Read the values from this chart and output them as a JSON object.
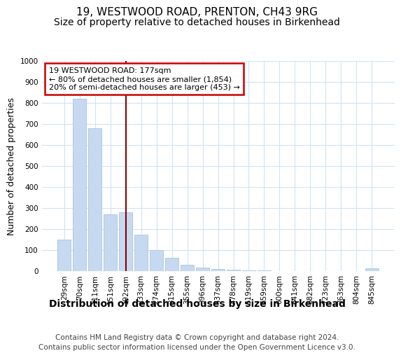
{
  "title": "19, WESTWOOD ROAD, PRENTON, CH43 9RG",
  "subtitle": "Size of property relative to detached houses in Birkenhead",
  "xlabel": "Distribution of detached houses by size in Birkenhead",
  "ylabel": "Number of detached properties",
  "categories": [
    "29sqm",
    "70sqm",
    "111sqm",
    "151sqm",
    "192sqm",
    "233sqm",
    "274sqm",
    "315sqm",
    "355sqm",
    "396sqm",
    "437sqm",
    "478sqm",
    "519sqm",
    "559sqm",
    "600sqm",
    "641sqm",
    "682sqm",
    "723sqm",
    "763sqm",
    "804sqm",
    "845sqm"
  ],
  "values": [
    150,
    820,
    680,
    270,
    280,
    175,
    100,
    65,
    30,
    18,
    10,
    7,
    5,
    4,
    0,
    0,
    0,
    0,
    0,
    0,
    15
  ],
  "bar_color": "#c6d9f0",
  "bar_edge_color": "#a8c4e0",
  "vline_x_index": 4,
  "vline_color": "#8b0000",
  "annotation_text": "19 WESTWOOD ROAD: 177sqm\n← 80% of detached houses are smaller (1,854)\n20% of semi-detached houses are larger (453) →",
  "annotation_box_color": "#ffffff",
  "annotation_box_edge": "#cc0000",
  "footer": "Contains HM Land Registry data © Crown copyright and database right 2024.\nContains public sector information licensed under the Open Government Licence v3.0.",
  "ylim": [
    0,
    1000
  ],
  "title_fontsize": 11,
  "subtitle_fontsize": 10,
  "xlabel_fontsize": 10,
  "ylabel_fontsize": 9,
  "tick_fontsize": 7.5,
  "footer_fontsize": 7.5,
  "background_color": "#ffffff",
  "grid_color": "#d0e4f0"
}
